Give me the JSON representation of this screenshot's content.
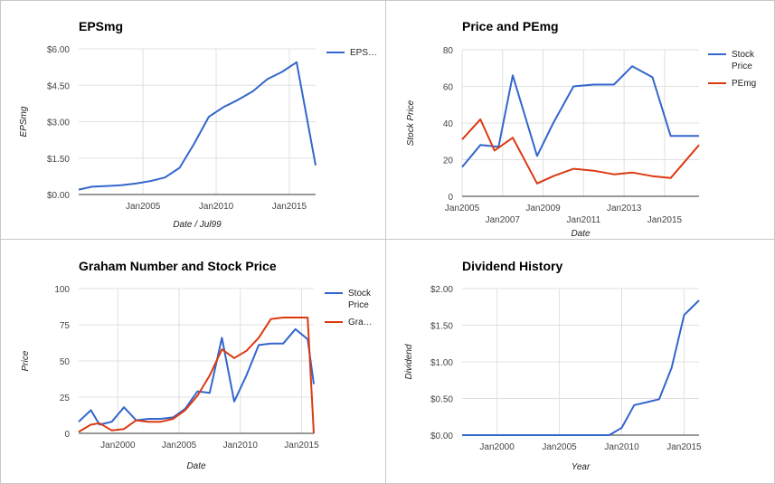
{
  "colors": {
    "blue": "#3366cc",
    "red": "#dc3912"
  },
  "chart_data": [
    {
      "id": "eps",
      "type": "line",
      "title": "EPSmg",
      "xlabel": "Date / Jul99",
      "ylabel": "EPSmg",
      "y_ticks": [
        {
          "value": 0,
          "label": "$0.00"
        },
        {
          "value": 1.5,
          "label": "$1.50"
        },
        {
          "value": 3,
          "label": "$3.00"
        },
        {
          "value": 4.5,
          "label": "$4.50"
        },
        {
          "value": 6,
          "label": "$6.00"
        }
      ],
      "x_ticks": [
        {
          "value": 2005,
          "label": "Jan2005"
        },
        {
          "value": 2010,
          "label": "Jan2010"
        },
        {
          "value": 2015,
          "label": "Jan2015"
        }
      ],
      "xlim": [
        2000.6,
        2016.8
      ],
      "ylim": [
        0,
        6
      ],
      "grid": true,
      "legend": "right",
      "series": [
        {
          "name": "EPS…",
          "color": "#3366cc",
          "x": [
            2000.6,
            2001.5,
            2002.5,
            2003.5,
            2004.5,
            2005.5,
            2006.5,
            2007.5,
            2008.5,
            2009.5,
            2010.5,
            2011.5,
            2012.5,
            2013.5,
            2014.5,
            2015.5,
            2016.8
          ],
          "y": [
            0.2,
            0.32,
            0.35,
            0.38,
            0.45,
            0.55,
            0.7,
            1.1,
            2.1,
            3.2,
            3.6,
            3.9,
            4.25,
            4.75,
            5.05,
            5.45,
            1.2
          ]
        }
      ]
    },
    {
      "id": "price-pe",
      "type": "line",
      "title": "Price and PEmg",
      "xlabel": "Date",
      "ylabel": "Stock Price",
      "y_ticks": [
        {
          "value": 0,
          "label": "0"
        },
        {
          "value": 20,
          "label": "20"
        },
        {
          "value": 40,
          "label": "40"
        },
        {
          "value": 60,
          "label": "60"
        },
        {
          "value": 80,
          "label": "80"
        }
      ],
      "x_ticks": [
        {
          "value": 2005,
          "label": "Jan2005"
        },
        {
          "value": 2007,
          "label": "Jan2007"
        },
        {
          "value": 2009,
          "label": "Jan2009"
        },
        {
          "value": 2011,
          "label": "Jan2011"
        },
        {
          "value": 2013,
          "label": "Jan2013"
        },
        {
          "value": 2015,
          "label": "Jan2015"
        }
      ],
      "xlim": [
        2005,
        2016.7
      ],
      "ylim": [
        0,
        80
      ],
      "grid": true,
      "legend": "right",
      "series": [
        {
          "name": "Stock Price",
          "color": "#3366cc",
          "x": [
            2005,
            2005.9,
            2006.8,
            2007.5,
            2008.7,
            2009.5,
            2010.5,
            2011.5,
            2012.5,
            2013.4,
            2014.4,
            2015.3,
            2016.7
          ],
          "y": [
            16,
            28,
            27,
            66,
            22,
            40,
            60,
            61,
            61,
            71,
            65,
            33,
            33
          ]
        },
        {
          "name": "PEmg",
          "color": "#dc3912",
          "x": [
            2005,
            2005.9,
            2006.6,
            2007.5,
            2008.7,
            2009.5,
            2010.5,
            2011.5,
            2012.5,
            2013.4,
            2014.4,
            2015.3,
            2016.7
          ],
          "y": [
            31,
            42,
            25,
            32,
            7,
            11,
            15,
            14,
            12,
            13,
            11,
            10,
            28
          ]
        }
      ]
    },
    {
      "id": "graham",
      "type": "line",
      "title": "Graham Number and Stock Price",
      "xlabel": "Date",
      "ylabel": "Price",
      "y_ticks": [
        {
          "value": 0,
          "label": "0"
        },
        {
          "value": 25,
          "label": "25"
        },
        {
          "value": 50,
          "label": "50"
        },
        {
          "value": 75,
          "label": "75"
        },
        {
          "value": 100,
          "label": "100"
        }
      ],
      "x_ticks": [
        {
          "value": 2000,
          "label": "Jan2000"
        },
        {
          "value": 2005,
          "label": "Jan2005"
        },
        {
          "value": 2010,
          "label": "Jan2010"
        },
        {
          "value": 2015,
          "label": "Jan2015"
        }
      ],
      "xlim": [
        1996.8,
        2016
      ],
      "ylim": [
        0,
        100
      ],
      "grid": true,
      "legend": "right",
      "series": [
        {
          "name": "Stock Price",
          "color": "#3366cc",
          "x": [
            1996.8,
            1997.8,
            1998.5,
            1999.5,
            2000.5,
            2001.5,
            2002.5,
            2003.5,
            2004.5,
            2005.5,
            2006.5,
            2007.5,
            2008.5,
            2009.5,
            2010.5,
            2011.5,
            2012.5,
            2013.5,
            2014.5,
            2015.5,
            2016
          ],
          "y": [
            8,
            16,
            6,
            8,
            18,
            9,
            10,
            10,
            11,
            17,
            29,
            28,
            66,
            22,
            40,
            61,
            62,
            62,
            72,
            65,
            34
          ]
        },
        {
          "name": "Gra…",
          "color": "#dc3912",
          "x": [
            1996.8,
            1997.8,
            1998.5,
            1999.5,
            2000.5,
            2001.5,
            2002.5,
            2003.5,
            2004.5,
            2005.5,
            2006.5,
            2007.5,
            2008.5,
            2009.5,
            2010.5,
            2011.5,
            2012.5,
            2013.5,
            2014.5,
            2015.5,
            2016
          ],
          "y": [
            1,
            6,
            7,
            2,
            3,
            9,
            8,
            8,
            10,
            16,
            26,
            40,
            58,
            52,
            57,
            66,
            79,
            80,
            80,
            80,
            0
          ]
        }
      ]
    },
    {
      "id": "dividend",
      "type": "line",
      "title": "Dividend History",
      "xlabel": "Year",
      "ylabel": "Dividend",
      "y_ticks": [
        {
          "value": 0,
          "label": "$0.00"
        },
        {
          "value": 0.5,
          "label": "$0.50"
        },
        {
          "value": 1,
          "label": "$1.00"
        },
        {
          "value": 1.5,
          "label": "$1.50"
        },
        {
          "value": 2,
          "label": "$2.00"
        }
      ],
      "x_ticks": [
        {
          "value": 2000,
          "label": "Jan2000"
        },
        {
          "value": 2005,
          "label": "Jan2005"
        },
        {
          "value": 2010,
          "label": "Jan2010"
        },
        {
          "value": 2015,
          "label": "Jan2015"
        }
      ],
      "xlim": [
        1997.2,
        2016.2
      ],
      "ylim": [
        0,
        2
      ],
      "grid": true,
      "legend": "none",
      "series": [
        {
          "name": "",
          "color": "#3366cc",
          "x": [
            1997.2,
            1998,
            1999,
            2000,
            2001,
            2002,
            2003,
            2004,
            2005,
            2006,
            2007,
            2008,
            2009,
            2010,
            2011,
            2012,
            2013,
            2014,
            2015,
            2016.2
          ],
          "y": [
            0,
            0,
            0,
            0,
            0,
            0,
            0,
            0,
            0,
            0,
            0,
            0,
            0,
            0.1,
            0.41,
            0.45,
            0.49,
            0.92,
            1.64,
            1.84
          ]
        }
      ]
    }
  ]
}
